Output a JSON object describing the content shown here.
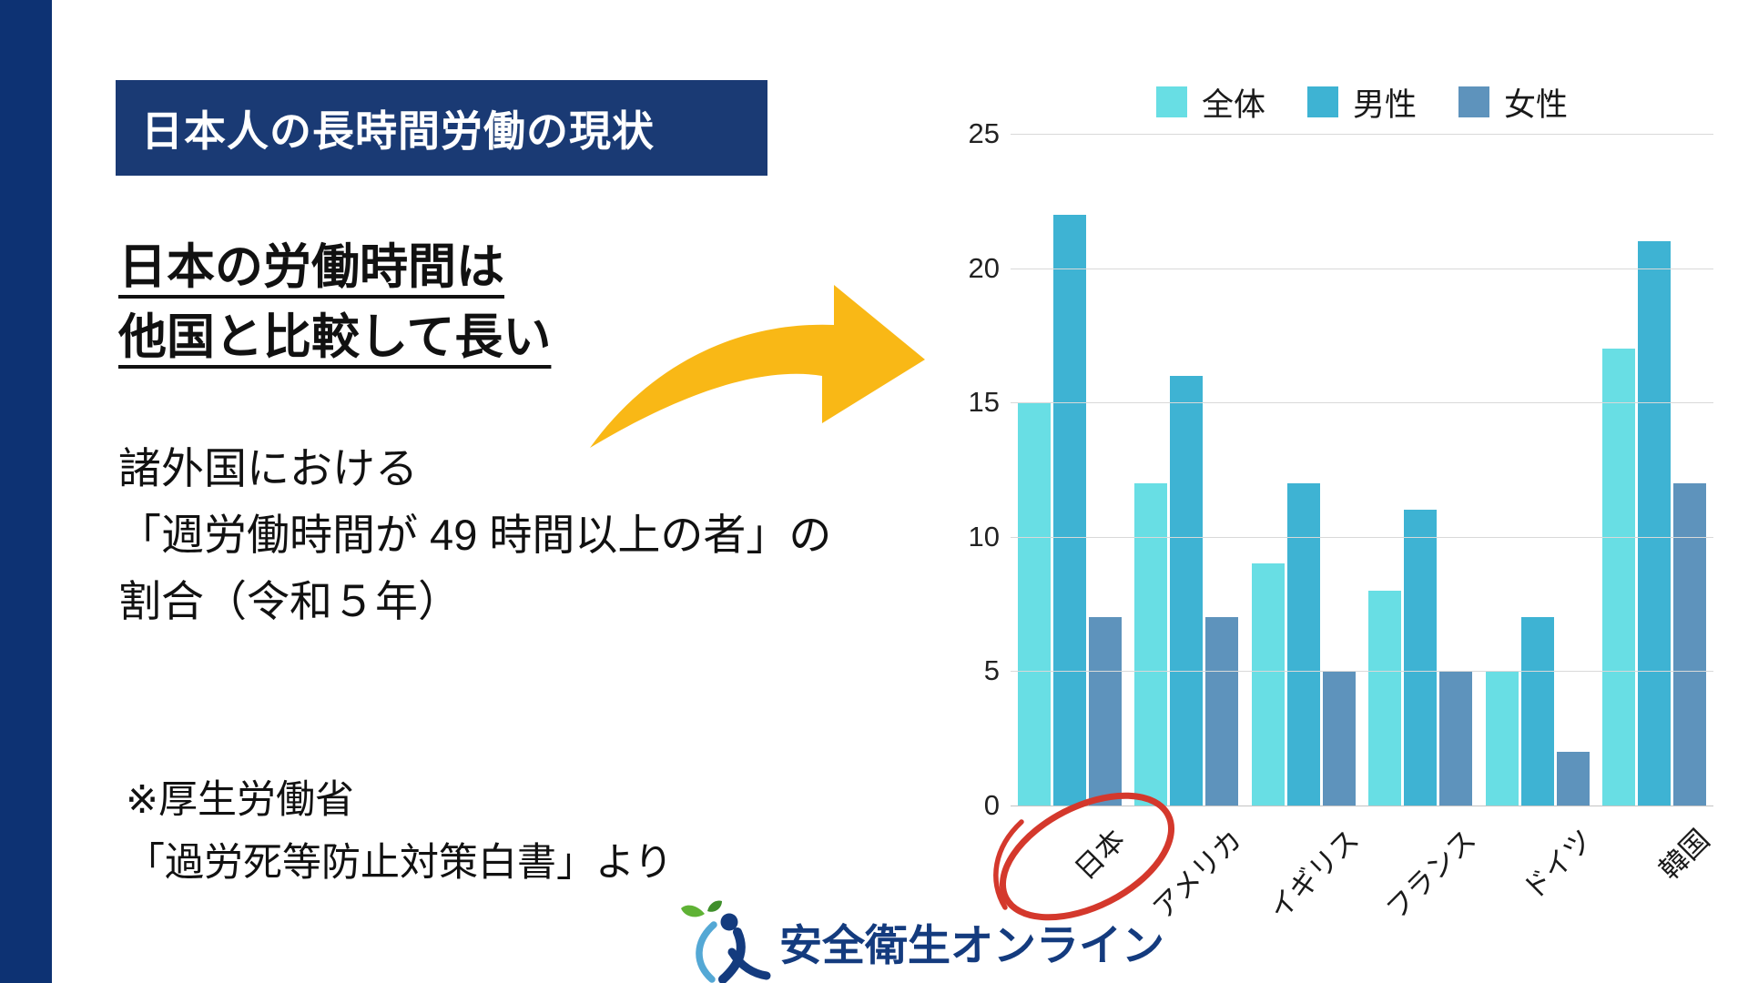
{
  "slide": {
    "title": "日本人の長時間労働の現状",
    "headline_lines": [
      "日本の労働時間は",
      "他国と比較して長い"
    ],
    "body_lines": [
      "諸外国における",
      "「週労働時間が 49 時間以上の者」の",
      "割合（令和５年）"
    ],
    "footnote_lines": [
      "※厚生労働省",
      "「過労死等防止対策白書」より"
    ],
    "logo_text": "安全衛生オンライン"
  },
  "chart_data": {
    "type": "bar",
    "title": "",
    "categories": [
      "日本",
      "アメリカ",
      "イギリス",
      "フランス",
      "ドイツ",
      "韓国"
    ],
    "series": [
      {
        "name": "全体",
        "color": "#68dee4",
        "values": [
          15,
          12,
          9,
          8,
          5,
          17
        ]
      },
      {
        "name": "男性",
        "color": "#3eb3d3",
        "values": [
          22,
          16,
          12,
          11,
          7,
          21
        ]
      },
      {
        "name": "女性",
        "color": "#5e93bc",
        "values": [
          7,
          7,
          5,
          5,
          2,
          12
        ]
      }
    ],
    "xlabel": "",
    "ylabel": "",
    "ylim": [
      0,
      25
    ],
    "yticks": [
      0,
      5,
      10,
      15,
      20,
      25
    ],
    "grid": true,
    "legend_position": "top",
    "annotation": "hand-drawn red circle highlighting 日本 category"
  },
  "colors": {
    "sidebar_navy": "#0d3273",
    "title_box_navy": "#1a3a74",
    "arrow_yellow": "#f9b816",
    "circle_red": "#d4382c",
    "logo_navy": "#143b7e",
    "logo_lightblue": "#54a8d5",
    "logo_green": "#5fb235",
    "gridline_gray": "#d9d9d9"
  }
}
